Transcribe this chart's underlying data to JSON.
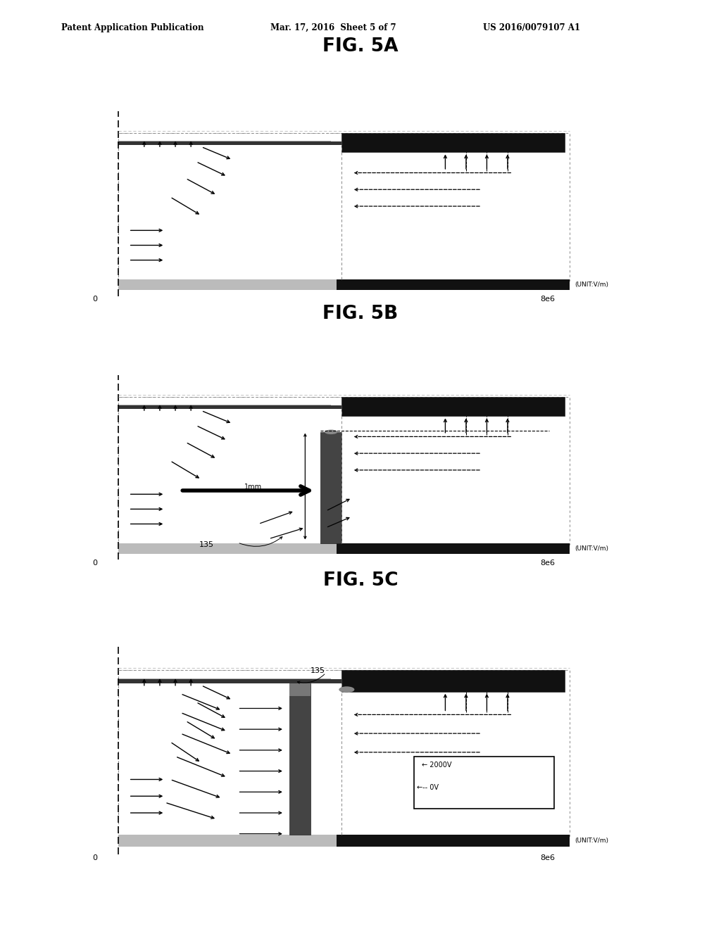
{
  "title_5a": "FIG. 5A",
  "title_5b": "FIG. 5B",
  "title_5c": "FIG. 5C",
  "header_left": "Patent Application Publication",
  "header_mid": "Mar. 17, 2016  Sheet 5 of 7",
  "header_right": "US 2016/0079107 A1",
  "unit_label": "(UNIT:V/m)",
  "x_label_0": "0",
  "x_label_8e6": "8e6",
  "label_135": "135",
  "label_1mm": "1mm",
  "label_2000v": "← 2000V",
  "label_0v": "←-- 0V",
  "bg_color": "#ffffff"
}
